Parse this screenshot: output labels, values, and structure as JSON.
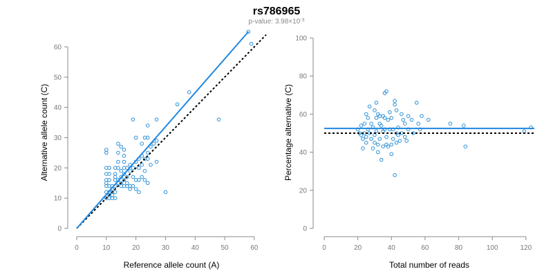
{
  "header": {
    "title": "rs786965",
    "subtitle_prefix": "p-value: 3.98×10",
    "subtitle_exponent": "-3"
  },
  "chart_data": [
    {
      "type": "scatter",
      "xlabel": "Reference allele count (A)",
      "ylabel": "Alternative allele count (C)",
      "xlim": [
        0,
        64
      ],
      "ylim": [
        0,
        65
      ],
      "xticks": [
        0,
        10,
        20,
        30,
        40,
        50,
        60
      ],
      "yticks": [
        0,
        10,
        20,
        30,
        40,
        50,
        60
      ],
      "grid": false,
      "point_color": "#2b8fd6",
      "fit_color": "#1f86e0",
      "ref_color": "#000000",
      "fit_line": [
        [
          0,
          0
        ],
        [
          58,
          65
        ]
      ],
      "reference_line": [
        [
          0,
          0
        ],
        [
          64,
          64
        ]
      ],
      "points": [
        [
          10,
          26
        ],
        [
          10,
          25
        ],
        [
          10,
          20
        ],
        [
          11,
          20
        ],
        [
          10,
          18
        ],
        [
          11,
          18
        ],
        [
          10,
          16
        ],
        [
          11,
          16
        ],
        [
          10,
          15
        ],
        [
          11,
          14
        ],
        [
          10,
          14
        ],
        [
          12,
          14
        ],
        [
          10,
          12
        ],
        [
          11,
          12
        ],
        [
          12,
          12
        ],
        [
          13,
          12
        ],
        [
          11,
          11
        ],
        [
          12,
          11
        ],
        [
          10,
          10
        ],
        [
          11,
          10
        ],
        [
          12,
          10
        ],
        [
          13,
          10
        ],
        [
          12,
          13
        ],
        [
          13,
          14
        ],
        [
          13,
          16
        ],
        [
          13,
          17
        ],
        [
          13,
          18
        ],
        [
          13,
          20
        ],
        [
          14,
          28
        ],
        [
          14,
          25
        ],
        [
          14,
          22
        ],
        [
          14,
          20
        ],
        [
          14,
          16
        ],
        [
          14,
          15
        ],
        [
          15,
          27
        ],
        [
          15,
          19
        ],
        [
          15,
          17
        ],
        [
          15,
          15
        ],
        [
          15,
          14
        ],
        [
          16,
          26
        ],
        [
          16,
          24
        ],
        [
          16,
          22
        ],
        [
          16,
          20
        ],
        [
          16,
          18
        ],
        [
          16,
          16
        ],
        [
          16,
          14
        ],
        [
          17,
          20
        ],
        [
          17,
          17
        ],
        [
          17,
          15
        ],
        [
          17,
          14
        ],
        [
          18,
          21
        ],
        [
          18,
          19
        ],
        [
          18,
          14
        ],
        [
          18,
          13
        ],
        [
          19,
          36
        ],
        [
          19,
          20
        ],
        [
          19,
          17
        ],
        [
          19,
          14
        ],
        [
          20,
          30
        ],
        [
          20,
          22
        ],
        [
          20,
          16
        ],
        [
          20,
          13
        ],
        [
          21,
          23
        ],
        [
          21,
          20
        ],
        [
          21,
          12
        ],
        [
          21,
          16
        ],
        [
          22,
          28
        ],
        [
          22,
          24
        ],
        [
          22,
          21
        ],
        [
          22,
          17
        ],
        [
          23,
          30
        ],
        [
          23,
          23
        ],
        [
          23,
          19
        ],
        [
          23,
          16
        ],
        [
          24,
          34
        ],
        [
          24,
          30
        ],
        [
          24,
          25
        ],
        [
          24,
          23
        ],
        [
          24,
          15
        ],
        [
          25,
          27
        ],
        [
          25,
          21
        ],
        [
          26,
          28
        ],
        [
          27,
          36
        ],
        [
          27,
          29
        ],
        [
          27,
          22
        ],
        [
          30,
          12
        ],
        [
          34,
          41
        ],
        [
          38,
          45
        ],
        [
          48,
          36
        ],
        [
          58,
          65
        ],
        [
          59,
          61
        ]
      ]
    },
    {
      "type": "scatter",
      "xlabel": "Total number of reads",
      "ylabel": "Percentage alternative (C)",
      "xlim": [
        0,
        125
      ],
      "ylim": [
        0,
        100
      ],
      "xticks": [
        0,
        20,
        40,
        60,
        80,
        100,
        120
      ],
      "yticks": [
        0,
        20,
        40,
        60,
        80,
        100
      ],
      "grid": false,
      "point_color": "#2b8fd6",
      "fit_color": "#1f86e0",
      "ref_color": "#000000",
      "fit_line": [
        [
          0,
          52.5
        ],
        [
          125,
          52.5
        ]
      ],
      "reference_line": [
        [
          0,
          50
        ],
        [
          125,
          50
        ]
      ],
      "points": [
        [
          20,
          52
        ],
        [
          21,
          50
        ],
        [
          22,
          49
        ],
        [
          22,
          54
        ],
        [
          23,
          47
        ],
        [
          23,
          42
        ],
        [
          24,
          55
        ],
        [
          24,
          50
        ],
        [
          25,
          60
        ],
        [
          25,
          48
        ],
        [
          25,
          45
        ],
        [
          26,
          52
        ],
        [
          26,
          58
        ],
        [
          27,
          64
        ],
        [
          27,
          50
        ],
        [
          28,
          47
        ],
        [
          28,
          55
        ],
        [
          29,
          42
        ],
        [
          29,
          53
        ],
        [
          30,
          62
        ],
        [
          30,
          49
        ],
        [
          30,
          45
        ],
        [
          31,
          66
        ],
        [
          31,
          58
        ],
        [
          31,
          51
        ],
        [
          32,
          60
        ],
        [
          32,
          44
        ],
        [
          32,
          40
        ],
        [
          33,
          59
        ],
        [
          33,
          55
        ],
        [
          33,
          47
        ],
        [
          34,
          36
        ],
        [
          34,
          54
        ],
        [
          35,
          59
        ],
        [
          35,
          51
        ],
        [
          35,
          43
        ],
        [
          36,
          71
        ],
        [
          36,
          58
        ],
        [
          36,
          52
        ],
        [
          37,
          72
        ],
        [
          37,
          48
        ],
        [
          37,
          44
        ],
        [
          38,
          57
        ],
        [
          38,
          43
        ],
        [
          39,
          61
        ],
        [
          39,
          52
        ],
        [
          40,
          58
        ],
        [
          40,
          44
        ],
        [
          40,
          39
        ],
        [
          41,
          47
        ],
        [
          41,
          52
        ],
        [
          42,
          67
        ],
        [
          42,
          28
        ],
        [
          42,
          65
        ],
        [
          43,
          62
        ],
        [
          43,
          50
        ],
        [
          43,
          45
        ],
        [
          44,
          49
        ],
        [
          44,
          53
        ],
        [
          45,
          46
        ],
        [
          46,
          60
        ],
        [
          46,
          50
        ],
        [
          47,
          57
        ],
        [
          48,
          48
        ],
        [
          48,
          55
        ],
        [
          49,
          46
        ],
        [
          50,
          59
        ],
        [
          50,
          52
        ],
        [
          52,
          57
        ],
        [
          53,
          50
        ],
        [
          55,
          66
        ],
        [
          56,
          55
        ],
        [
          57,
          52
        ],
        [
          58,
          59
        ],
        [
          62,
          57
        ],
        [
          75,
          55
        ],
        [
          83,
          54
        ],
        [
          84,
          43
        ],
        [
          119,
          51
        ],
        [
          123,
          53
        ]
      ]
    }
  ]
}
